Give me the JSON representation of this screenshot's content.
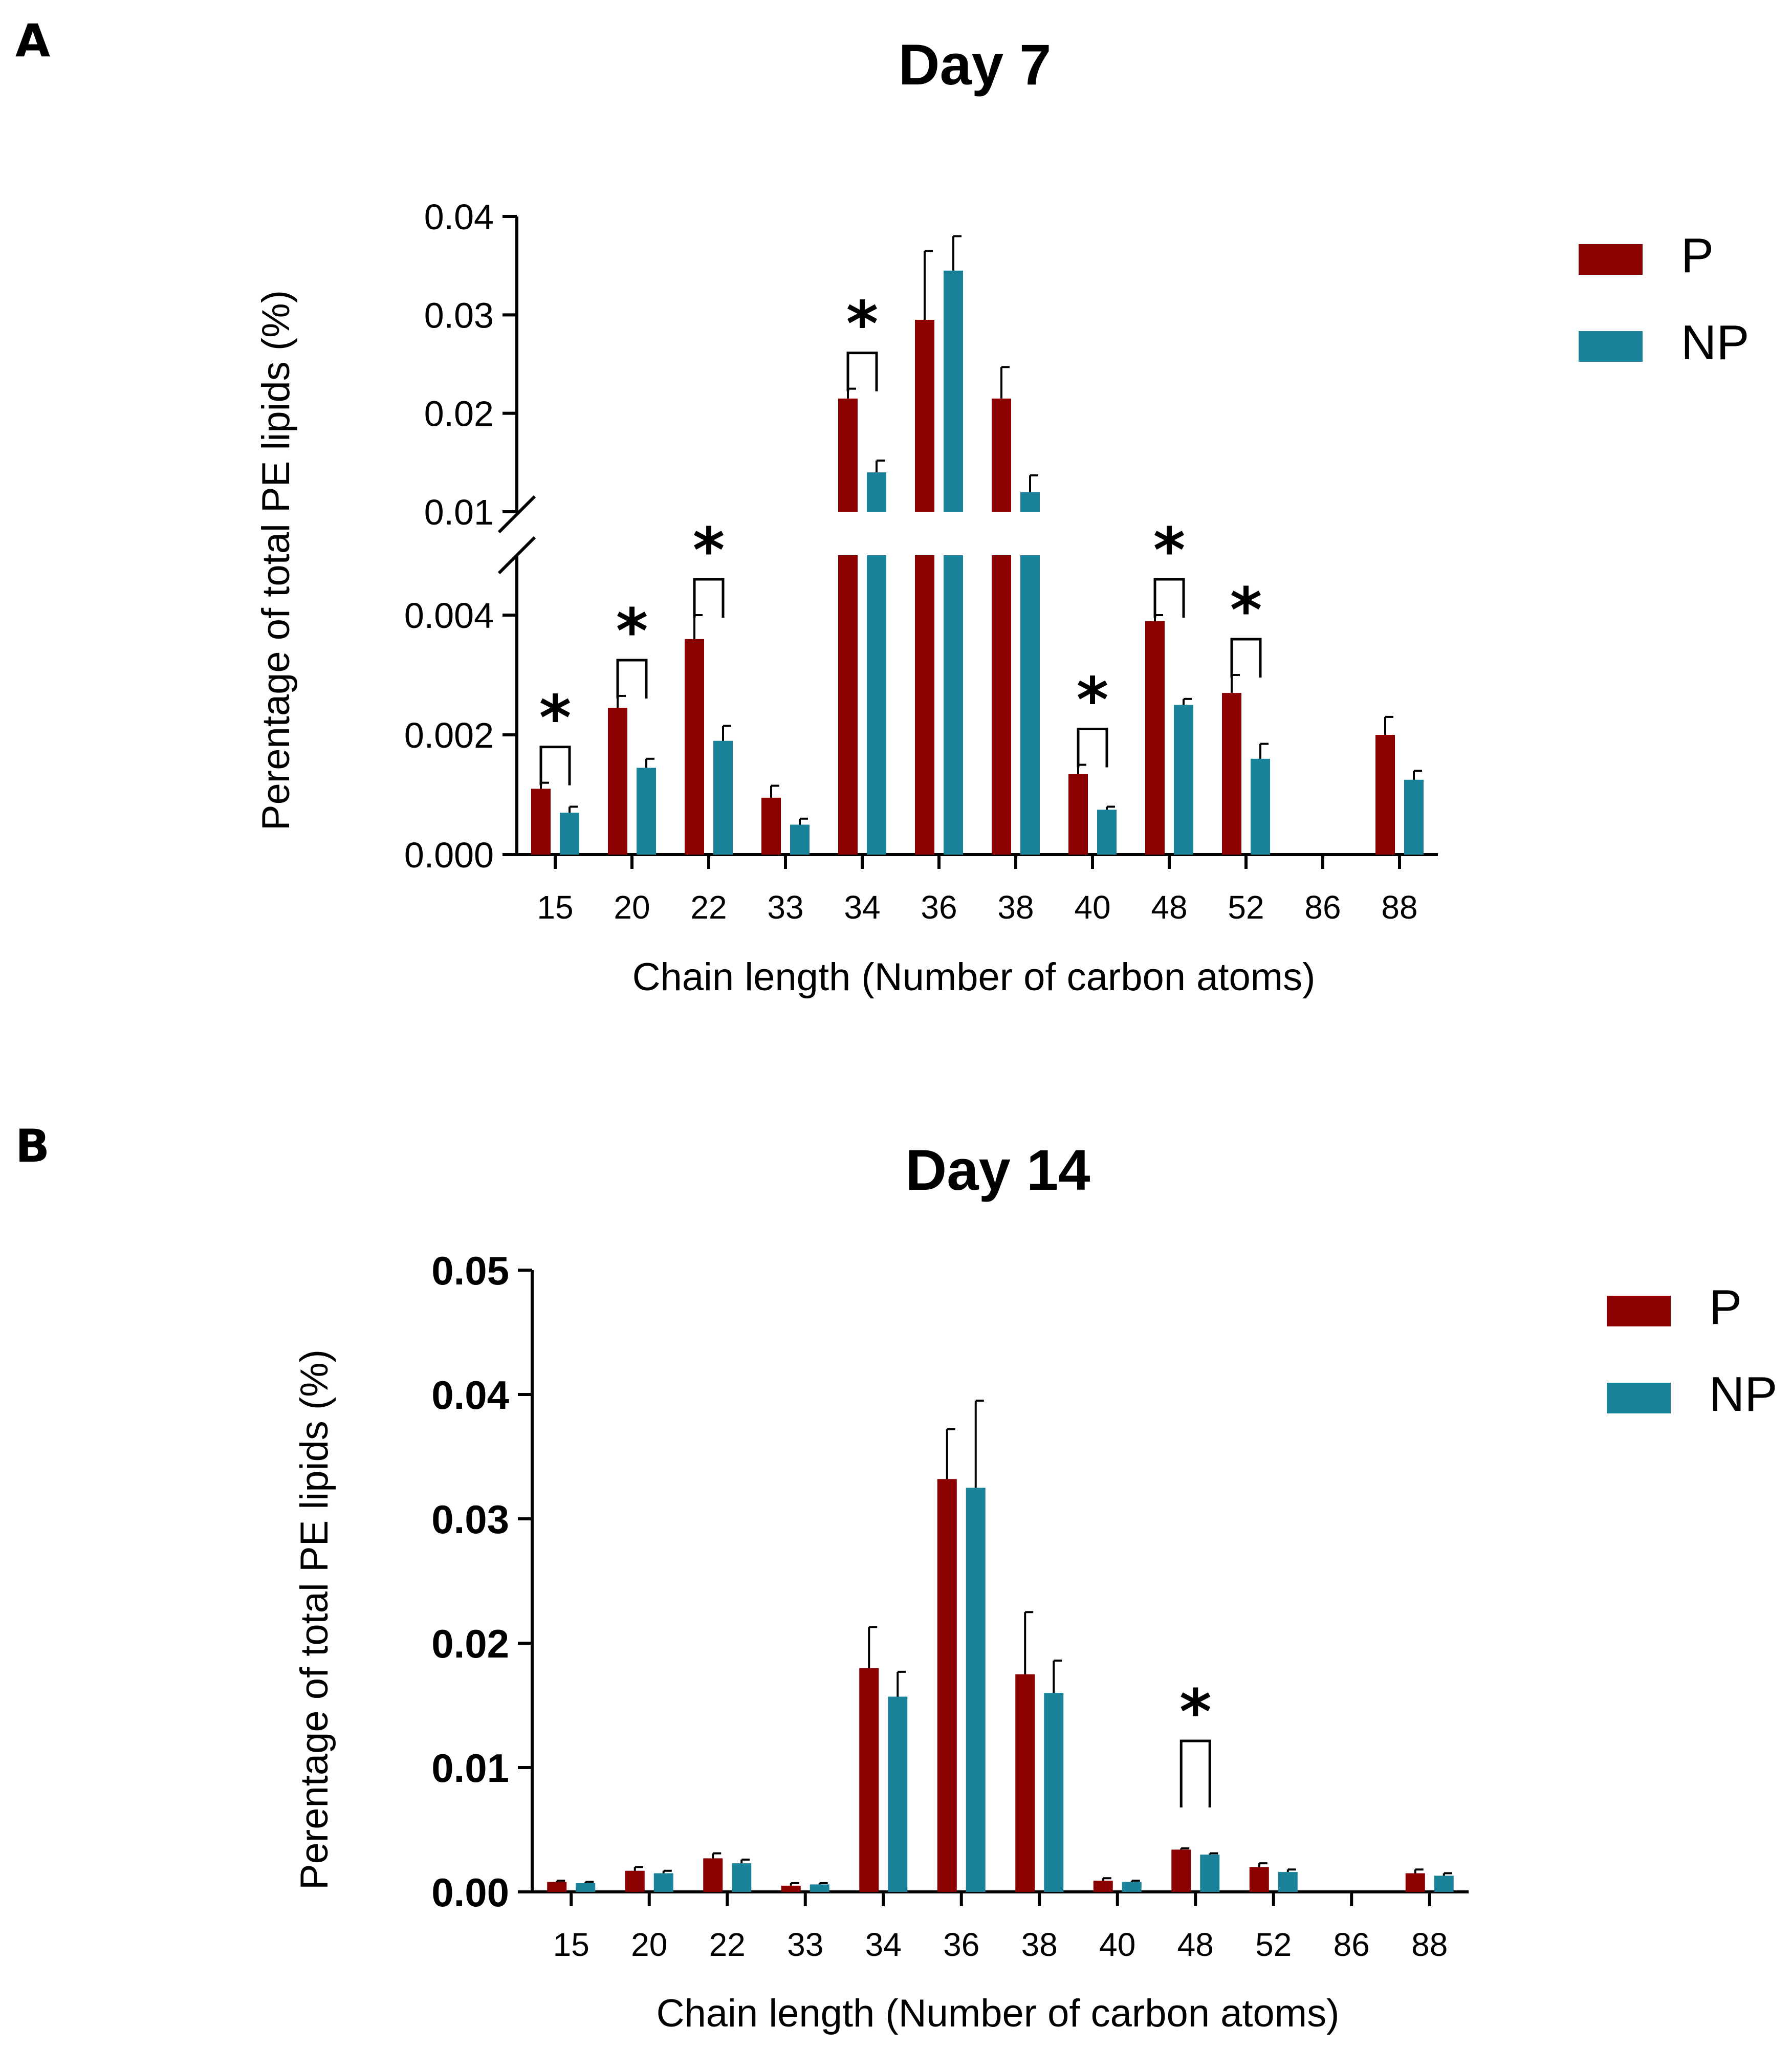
{
  "colors": {
    "P": "#8b0000",
    "NP": "#1a8299"
  },
  "chart_data": [
    {
      "panel": "A",
      "type": "bar",
      "title": "Day 7",
      "xlabel": "Chain length (Number of carbon atoms)",
      "ylabel": "Perentage of total PE lipids (%)",
      "categories": [
        "15",
        "20",
        "22",
        "33",
        "34",
        "36",
        "38",
        "40",
        "48",
        "52",
        "86",
        "88"
      ],
      "series": [
        {
          "name": "P",
          "color": "#8b0000",
          "values": [
            0.0011,
            0.00245,
            0.0036,
            0.00095,
            0.0215,
            0.0295,
            0.0215,
            0.00135,
            0.0039,
            0.0027,
            0.0,
            0.002
          ],
          "errors": [
            0.0001,
            0.0002,
            0.0004,
            0.0002,
            0.001,
            0.007,
            0.0032,
            0.00015,
            0.0001,
            0.0003,
            0.0,
            0.0003
          ]
        },
        {
          "name": "NP",
          "color": "#1a8299",
          "values": [
            0.0007,
            0.00145,
            0.0019,
            0.0005,
            0.014,
            0.0345,
            0.012,
            0.00075,
            0.0025,
            0.0016,
            0.0,
            0.00125
          ],
          "errors": [
            0.0001,
            0.00015,
            0.00025,
            0.0001,
            0.0012,
            0.0035,
            0.0017,
            5e-05,
            0.0001,
            0.00025,
            0.0,
            0.00015
          ]
        }
      ],
      "broken_axis": {
        "lower": {
          "range": [
            0,
            0.005
          ],
          "ticks": [
            "0.000",
            "0.002",
            "0.004"
          ]
        },
        "upper": {
          "range": [
            0.01,
            0.04
          ],
          "ticks": [
            "0.01",
            "0.02",
            "0.03",
            "0.04"
          ]
        }
      },
      "significance": [
        "15",
        "20",
        "22",
        "34",
        "40",
        "48",
        "52"
      ],
      "significance_mark": "*",
      "legend": [
        "P",
        "NP"
      ],
      "legend_position": "right"
    },
    {
      "panel": "B",
      "type": "bar",
      "title": "Day 14",
      "xlabel": "Chain length (Number of carbon atoms)",
      "ylabel": "Perentage of total PE lipids (%)",
      "categories": [
        "15",
        "20",
        "22",
        "33",
        "34",
        "36",
        "38",
        "40",
        "48",
        "52",
        "86",
        "88"
      ],
      "ylim": [
        0,
        0.05
      ],
      "yticks": [
        "0.00",
        "0.01",
        "0.02",
        "0.03",
        "0.04",
        "0.05"
      ],
      "series": [
        {
          "name": "P",
          "color": "#8b0000",
          "values": [
            0.0008,
            0.0017,
            0.0027,
            0.0005,
            0.018,
            0.0332,
            0.0175,
            0.0009,
            0.0034,
            0.002,
            0.0,
            0.0015
          ],
          "errors": [
            0.0001,
            0.0003,
            0.0004,
            0.0002,
            0.0033,
            0.004,
            0.005,
            0.0002,
            0.0001,
            0.0003,
            0.0,
            0.0003
          ]
        },
        {
          "name": "NP",
          "color": "#1a8299",
          "values": [
            0.0007,
            0.0015,
            0.0023,
            0.0006,
            0.0157,
            0.0325,
            0.016,
            0.0008,
            0.003,
            0.0016,
            0.0,
            0.0013
          ],
          "errors": [
            0.0001,
            0.0002,
            0.0003,
            0.0001,
            0.002,
            0.007,
            0.0026,
            0.0001,
            0.0001,
            0.0002,
            0.0,
            0.0002
          ]
        }
      ],
      "significance": [
        "48"
      ],
      "significance_mark": "*",
      "legend": [
        "P",
        "NP"
      ],
      "legend_position": "right"
    }
  ]
}
